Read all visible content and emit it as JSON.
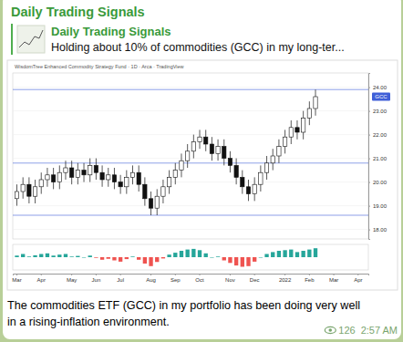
{
  "header": {
    "channel": "Daily Trading Signals"
  },
  "reply": {
    "title": "Daily Trading Signals",
    "text": "Holding about 10% of commodities (GCC) in my long-ter..."
  },
  "message": {
    "caption_lines": [
      "The commodities ETF (GCC) in my portfolio has been doing very well",
      "in a rising-inflation environment."
    ],
    "views": 126,
    "time": "2:57 AM"
  },
  "chart_data": [
    {
      "type": "candlestick",
      "title": "WisdomTree Enhanced Commodity Strategy Fund · 1D · Arca · TradingView",
      "categories": [
        "Mar",
        null,
        null,
        null,
        "Apr",
        null,
        null,
        null,
        null,
        "May",
        null,
        null,
        null,
        "Jun",
        null,
        null,
        null,
        "Jul",
        null,
        null,
        null,
        null,
        "Aug",
        null,
        null,
        null,
        "Sep",
        null,
        null,
        null,
        "Oct",
        null,
        null,
        null,
        null,
        "Nov",
        null,
        null,
        null,
        "Dec",
        null,
        null,
        null,
        null,
        "2022",
        null,
        null,
        null,
        "Feb",
        null,
        null,
        null,
        "Mar",
        null,
        null,
        null,
        "Apr",
        null
      ],
      "series": [
        {
          "name": "GCC",
          "open": [
            19.3,
            19.6,
            19.9,
            19.4,
            19.8,
            20.1,
            20.3,
            20.0,
            20.4,
            20.6,
            20.2,
            20.5,
            20.3,
            20.7,
            20.4,
            20.1,
            20.3,
            20.0,
            19.8,
            20.2,
            20.4,
            19.9,
            19.3,
            18.9,
            19.4,
            19.8,
            20.2,
            20.5,
            20.9,
            21.3,
            21.7,
            21.9,
            21.6,
            21.2,
            21.5,
            21.0,
            20.7,
            20.2,
            19.8,
            19.5,
            19.9,
            20.4,
            20.8,
            21.1,
            21.5,
            21.9,
            22.3,
            22.1,
            22.7,
            23.1,
            null,
            null,
            null,
            null,
            null,
            null,
            null,
            null
          ],
          "high": [
            19.9,
            20.2,
            20.2,
            20.1,
            20.4,
            20.6,
            20.6,
            20.7,
            20.9,
            20.9,
            20.8,
            20.8,
            21.0,
            21.0,
            20.7,
            20.6,
            20.6,
            20.3,
            20.5,
            20.7,
            20.7,
            20.2,
            19.6,
            19.7,
            20.1,
            20.5,
            20.8,
            21.2,
            21.6,
            22.0,
            22.2,
            22.2,
            21.9,
            21.8,
            21.8,
            21.3,
            21.0,
            20.5,
            20.1,
            20.2,
            20.7,
            21.1,
            21.4,
            21.8,
            22.2,
            22.6,
            22.6,
            23.0,
            23.4,
            23.9,
            null,
            null,
            null,
            null,
            null,
            null,
            null,
            null
          ],
          "low": [
            19.0,
            19.3,
            19.1,
            19.1,
            19.5,
            19.8,
            19.7,
            19.7,
            20.1,
            19.9,
            19.9,
            20.0,
            20.0,
            20.1,
            19.8,
            19.8,
            19.7,
            19.5,
            19.5,
            19.9,
            19.6,
            19.0,
            18.6,
            18.6,
            19.1,
            19.5,
            19.9,
            20.2,
            20.6,
            21.0,
            21.4,
            21.3,
            20.9,
            20.9,
            20.7,
            20.4,
            19.9,
            19.5,
            19.2,
            19.2,
            19.6,
            20.1,
            20.5,
            20.8,
            21.2,
            21.6,
            21.8,
            21.8,
            22.4,
            22.8,
            null,
            null,
            null,
            null,
            null,
            null,
            null,
            null
          ],
          "close": [
            19.6,
            19.9,
            19.4,
            19.8,
            20.1,
            20.3,
            20.0,
            20.4,
            20.6,
            20.2,
            20.5,
            20.3,
            20.7,
            20.4,
            20.1,
            20.3,
            20.0,
            19.8,
            20.2,
            20.4,
            19.9,
            19.3,
            18.9,
            19.4,
            19.8,
            20.2,
            20.5,
            20.9,
            21.3,
            21.7,
            21.9,
            21.6,
            21.2,
            21.5,
            21.0,
            20.7,
            20.2,
            19.8,
            19.5,
            19.9,
            20.4,
            20.8,
            21.1,
            21.5,
            21.9,
            22.3,
            22.1,
            22.7,
            23.1,
            23.6,
            null,
            null,
            null,
            null,
            null,
            null,
            null,
            null
          ]
        }
      ],
      "levels": [
        23.9,
        20.8,
        18.6
      ],
      "ylim": [
        17.6,
        24.6
      ],
      "yticks": [
        {
          "value": 18,
          "label": "18.00"
        },
        {
          "value": 19,
          "label": "19.00"
        },
        {
          "value": 20,
          "label": "20.00"
        },
        {
          "value": 21,
          "label": "21.00"
        },
        {
          "value": 22,
          "label": "22.00"
        },
        {
          "value": 23,
          "label": "23.00"
        },
        {
          "value": 24,
          "label": "24.00"
        }
      ],
      "grid": true
    },
    {
      "type": "bar",
      "values": [
        0.05,
        0.1,
        0.02,
        0.06,
        0.1,
        0.12,
        0.05,
        0.08,
        0.1,
        0.02,
        0.04,
        0.0,
        0.05,
        -0.02,
        -0.08,
        -0.05,
        -0.1,
        -0.14,
        -0.06,
        0.02,
        -0.08,
        -0.2,
        -0.28,
        -0.15,
        -0.04,
        0.08,
        0.14,
        0.2,
        0.24,
        0.26,
        0.22,
        0.12,
        0.0,
        0.02,
        -0.1,
        -0.18,
        -0.26,
        -0.3,
        -0.28,
        -0.14,
        0.0,
        0.1,
        0.16,
        0.2,
        0.22,
        0.24,
        0.16,
        0.2,
        0.24,
        0.28,
        null,
        null,
        null,
        null,
        null,
        null,
        null,
        null
      ],
      "ylim": [
        -0.4,
        0.4
      ],
      "tick_labels": false
    }
  ]
}
